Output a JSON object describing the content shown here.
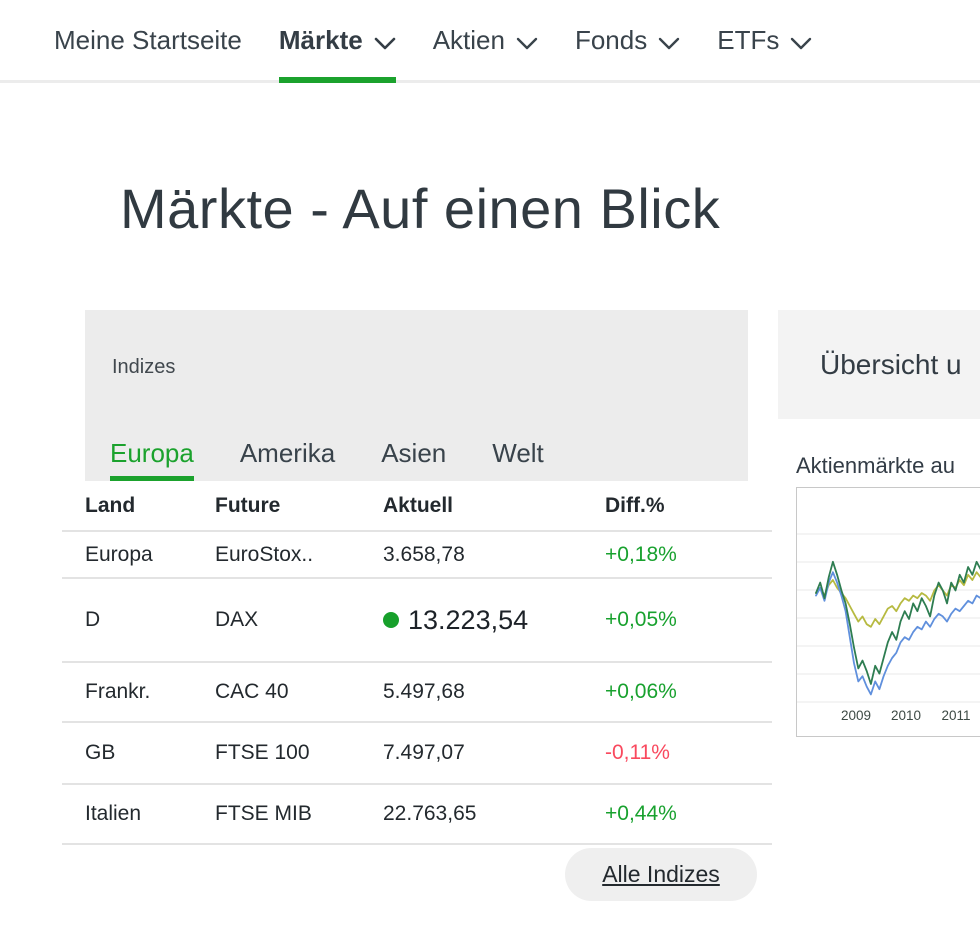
{
  "colors": {
    "accent_green": "#1ba22d",
    "positive_green": "#18a12e",
    "negative_red": "#f9495e",
    "panel_gray": "#ececec"
  },
  "nav": {
    "items": [
      {
        "label": "Meine Startseite",
        "active": false,
        "chevron": false
      },
      {
        "label": "Märkte",
        "active": true,
        "chevron": true
      },
      {
        "label": "Aktien",
        "active": false,
        "chevron": true
      },
      {
        "label": "Fonds",
        "active": false,
        "chevron": true
      },
      {
        "label": "ETFs",
        "active": false,
        "chevron": true
      }
    ]
  },
  "page_title": "Märkte - Auf einen Blick",
  "indices_card": {
    "title": "Indizes",
    "tabs": [
      {
        "label": "Europa",
        "active": true
      },
      {
        "label": "Amerika",
        "active": false
      },
      {
        "label": "Asien",
        "active": false
      },
      {
        "label": "Welt",
        "active": false
      }
    ],
    "columns": [
      "Land",
      "Future",
      "Aktuell",
      "Diff.%"
    ],
    "rows": [
      {
        "land": "Europa",
        "future": "EuroStox..",
        "aktuell": "3.658,78",
        "diff": "+0,18%",
        "negative": false,
        "realtime_dot": false
      },
      {
        "land": "D",
        "future": "DAX",
        "aktuell": "13.223,54",
        "diff": "+0,05%",
        "negative": false,
        "realtime_dot": true
      },
      {
        "land": "Frankr.",
        "future": "CAC 40",
        "aktuell": "5.497,68",
        "diff": "+0,06%",
        "negative": false,
        "realtime_dot": false
      },
      {
        "land": "GB",
        "future": "FTSE 100",
        "aktuell": "7.497,07",
        "diff": "-0,11%",
        "negative": true,
        "realtime_dot": false
      },
      {
        "land": "Italien",
        "future": "FTSE MIB",
        "aktuell": "22.763,65",
        "diff": "+0,44%",
        "negative": false,
        "realtime_dot": false
      }
    ],
    "footer_button": "Alle Indizes"
  },
  "overview_card": {
    "title": "Übersicht u",
    "chart_caption": "Aktienmärkte au"
  },
  "chart_data": {
    "type": "line",
    "title": "Aktienmärkte au",
    "x_start": 2008.2,
    "x_end": 2011.75,
    "x_ticks": [
      2009,
      2010,
      2011
    ],
    "ylim": [
      55,
      120
    ],
    "grid": true,
    "legend": "none",
    "series": [
      {
        "name": "yellow-index",
        "color": "#b7ba41",
        "values": [
          100,
          102,
          99,
          103,
          105,
          102,
          100,
          98,
          95,
          92,
          89,
          91,
          88,
          87,
          90,
          88,
          91,
          94,
          95,
          93,
          96,
          98,
          97,
          99,
          98,
          100,
          99,
          97,
          101,
          103,
          101,
          99,
          103,
          102,
          105,
          103,
          107,
          105,
          108,
          106,
          105,
          108,
          107
        ]
      },
      {
        "name": "blue-index",
        "color": "#6090dd",
        "values": [
          99,
          102,
          97,
          104,
          108,
          104,
          99,
          93,
          83,
          73,
          66,
          68,
          64,
          61,
          66,
          63,
          68,
          72,
          75,
          77,
          81,
          83,
          82,
          85,
          87,
          86,
          89,
          87,
          90,
          92,
          91,
          89,
          92,
          94,
          93,
          95,
          97,
          96,
          99,
          98,
          97,
          100,
          99
        ]
      },
      {
        "name": "green-index",
        "color": "#2e7d51",
        "values": [
          100,
          104,
          98,
          106,
          112,
          107,
          101,
          96,
          88,
          79,
          71,
          74,
          70,
          65,
          72,
          69,
          75,
          81,
          85,
          82,
          89,
          93,
          90,
          96,
          93,
          98,
          95,
          91,
          99,
          104,
          101,
          96,
          104,
          101,
          107,
          104,
          110,
          107,
          112,
          109,
          107,
          111,
          110
        ]
      }
    ]
  }
}
